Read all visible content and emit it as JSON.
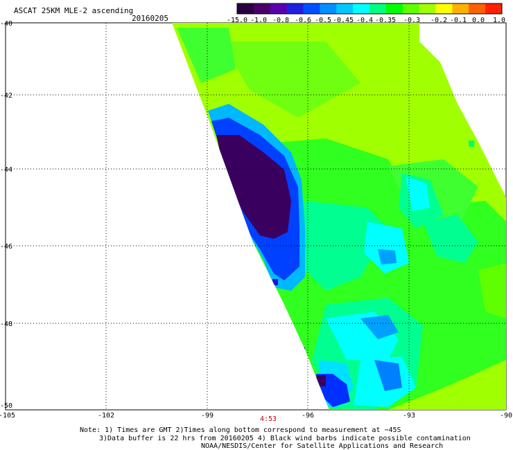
{
  "header": {
    "title": "ASCAT 25KM MLE-2 ascending",
    "date": "20160205"
  },
  "colorbar": {
    "colors": [
      "#2a0040",
      "#4a0068",
      "#5a00b0",
      "#2020e0",
      "#0050ff",
      "#0090ff",
      "#00c8ff",
      "#00ffff",
      "#00ff80",
      "#00ff00",
      "#60ff00",
      "#a0ff00",
      "#ffff00",
      "#ffb000",
      "#ff6000",
      "#ff2000"
    ],
    "tick_labels": [
      "-15.0",
      "-1.0",
      "-0.8",
      "-0.6",
      "-0.5",
      "-0.45",
      "-0.4",
      "-0.35",
      "-0.3",
      "-0.2",
      "-0.1",
      "0.0",
      "1.0"
    ]
  },
  "axes": {
    "lat_labels": [
      "-40",
      "-42",
      "-44",
      "-46",
      "-48",
      "-50"
    ],
    "lon_labels": [
      "-105",
      "-102",
      "-99",
      "-96",
      "-93",
      "-90"
    ],
    "grid": "dotted"
  },
  "pass_time": "4:53",
  "notes": {
    "line1": "Note: 1) Times are GMT 2)Times along bottom correspond to measurement at −45S",
    "line2": "3)Data buffer is 22 hrs from 20160205 4) Black wind barbs indicate possible contamination",
    "line3": "NOAA/NESDIS/Center for Satellite Applications and Research"
  },
  "swath_colors": {
    "main": "#a0ff00",
    "green": "#30ff20",
    "aqua_green": "#00ff90",
    "cyan": "#00ffff",
    "light_blue": "#00c8ff",
    "blue": "#0060ff",
    "deep_blue": "#2010e0",
    "purple": "#3a0060"
  }
}
